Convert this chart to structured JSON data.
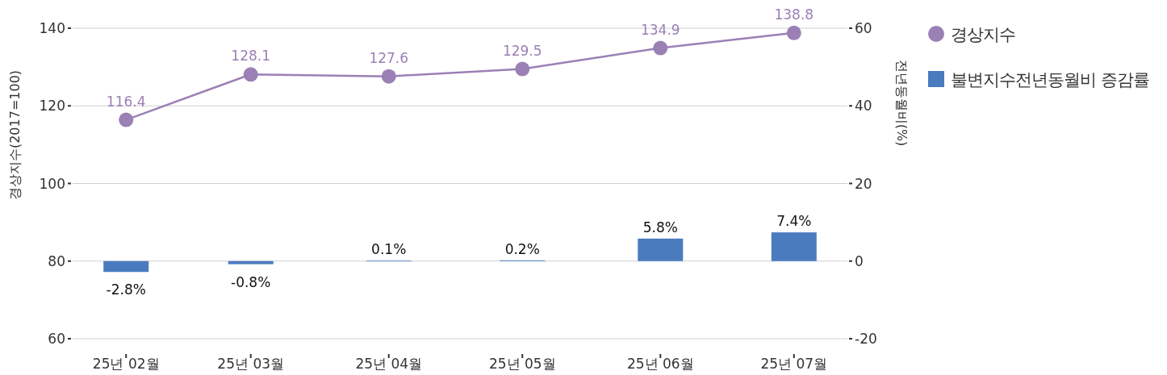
{
  "chart_data": {
    "type": "line",
    "ylabel": "경상지수(2017=100)",
    "y2label": "전년동월비(%)",
    "x": [
      "--02-01",
      "--03-01",
      "--04-01",
      "--05-01",
      "--06-01",
      "--07-01"
    ],
    "xlim": [
      "--01-20",
      "--07-13"
    ],
    "xticks": [
      {
        "value": "--02-01",
        "label": "25년 02월"
      },
      {
        "value": "--03-01",
        "label": "25년 03월"
      },
      {
        "value": "--04-01",
        "label": "25년 04월"
      },
      {
        "value": "--05-01",
        "label": "25년 05월"
      },
      {
        "value": "--06-01",
        "label": "25년 06월"
      },
      {
        "value": "--07-01",
        "label": "25년 07월"
      }
    ],
    "ylim": [
      60,
      140
    ],
    "yticks": [
      60,
      80,
      100,
      120,
      140
    ],
    "y2lim": [
      -20,
      60
    ],
    "y2ticks": [
      -20,
      0,
      20,
      40,
      60
    ],
    "grid": "y",
    "legend": "right",
    "marker": "circle",
    "series": [
      {
        "name": "경상지수",
        "color": "#9b80b5",
        "values": [
          116.4,
          128.1,
          127.6,
          129.5,
          134.9,
          138.8
        ],
        "value_labels": [
          "116.4",
          "128.1",
          "127.6",
          "129.5",
          "134.9",
          "138.8"
        ]
      },
      {
        "name": "불변지수전년동월비 증감률",
        "type": "bar",
        "axis": "y2",
        "color": "#4a7bbf",
        "values": [
          -2.8,
          -0.8,
          0.1,
          0.2,
          5.8,
          7.4
        ],
        "value_labels": [
          "-2.8%",
          "-0.8%",
          "0.1%",
          "0.2%",
          "5.8%",
          "7.4%"
        ]
      }
    ]
  }
}
